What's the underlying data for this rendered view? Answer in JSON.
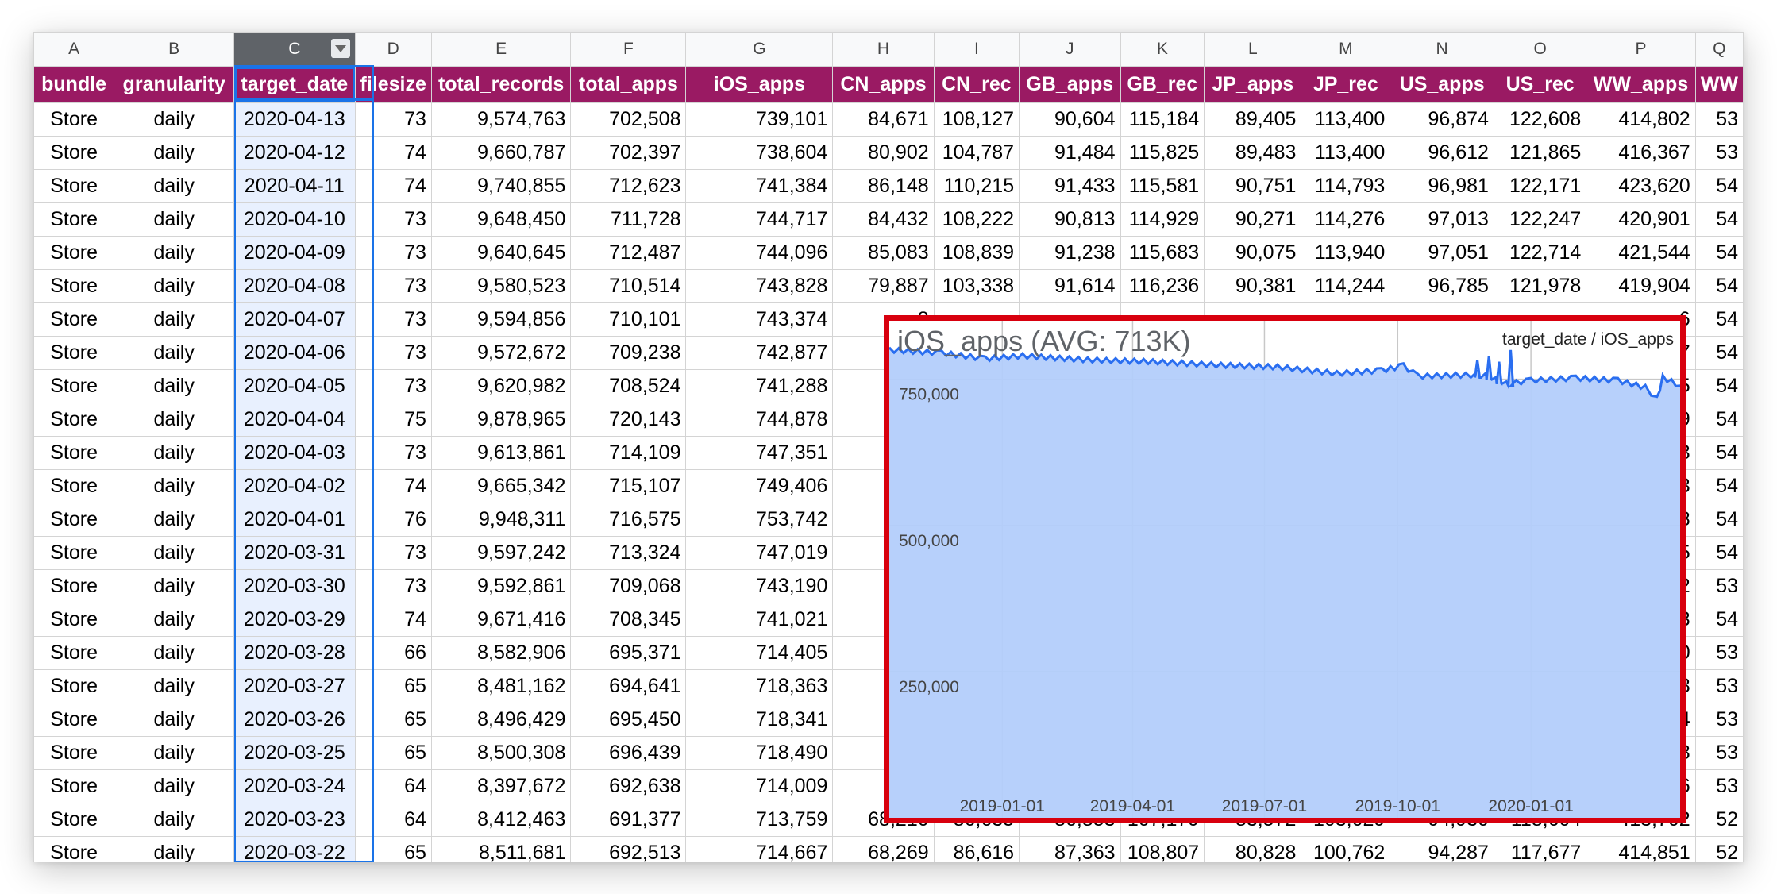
{
  "spreadsheet": {
    "column_letters": [
      "A",
      "B",
      "C",
      "D",
      "E",
      "F",
      "G",
      "H",
      "I",
      "J",
      "K",
      "L",
      "M",
      "N",
      "O",
      "P",
      "Q"
    ],
    "headers": [
      "bundle",
      "granularity",
      "target_date",
      "filesize",
      "total_records",
      "total_apps",
      "iOS_apps",
      "CN_apps",
      "CN_rec",
      "GB_apps",
      "GB_rec",
      "JP_apps",
      "JP_rec",
      "US_apps",
      "US_rec",
      "WW_apps",
      "WW"
    ],
    "rows": [
      [
        "Store",
        "daily",
        "2020-04-13",
        "73",
        "9,574,763",
        "702,508",
        "739,101",
        "84,671",
        "108,127",
        "90,604",
        "115,184",
        "89,405",
        "113,400",
        "96,874",
        "122,608",
        "414,802",
        "53"
      ],
      [
        "Store",
        "daily",
        "2020-04-12",
        "74",
        "9,660,787",
        "702,397",
        "738,604",
        "80,902",
        "104,787",
        "91,484",
        "115,825",
        "89,483",
        "113,400",
        "96,612",
        "121,865",
        "416,367",
        "53"
      ],
      [
        "Store",
        "daily",
        "2020-04-11",
        "74",
        "9,740,855",
        "712,623",
        "741,384",
        "86,148",
        "110,215",
        "91,433",
        "115,581",
        "90,751",
        "114,793",
        "96,981",
        "122,171",
        "423,620",
        "54"
      ],
      [
        "Store",
        "daily",
        "2020-04-10",
        "73",
        "9,648,450",
        "711,728",
        "744,717",
        "84,432",
        "108,222",
        "90,813",
        "114,929",
        "90,271",
        "114,276",
        "97,013",
        "122,247",
        "420,901",
        "54"
      ],
      [
        "Store",
        "daily",
        "2020-04-09",
        "73",
        "9,640,645",
        "712,487",
        "744,096",
        "85,083",
        "108,839",
        "91,238",
        "115,683",
        "90,075",
        "113,940",
        "97,051",
        "122,714",
        "421,544",
        "54"
      ],
      [
        "Store",
        "daily",
        "2020-04-08",
        "73",
        "9,580,523",
        "710,514",
        "743,828",
        "79,887",
        "103,338",
        "91,614",
        "116,236",
        "90,381",
        "114,244",
        "96,785",
        "121,978",
        "419,904",
        "54"
      ],
      [
        "Store",
        "daily",
        "2020-04-07",
        "73",
        "9,594,856",
        "710,101",
        "743,374",
        "8",
        "",
        "",
        "",
        "",
        "",
        "",
        "",
        "6",
        "54"
      ],
      [
        "Store",
        "daily",
        "2020-04-06",
        "73",
        "9,572,672",
        "709,238",
        "742,877",
        "8",
        "",
        "",
        "",
        "",
        "",
        "",
        "",
        "7",
        "54"
      ],
      [
        "Store",
        "daily",
        "2020-04-05",
        "73",
        "9,620,982",
        "708,524",
        "741,288",
        "7",
        "",
        "",
        "",
        "",
        "",
        "",
        "",
        "5",
        "54"
      ],
      [
        "Store",
        "daily",
        "2020-04-04",
        "75",
        "9,878,965",
        "720,143",
        "744,878",
        "8",
        "",
        "",
        "",
        "",
        "",
        "",
        "",
        "9",
        "54"
      ],
      [
        "Store",
        "daily",
        "2020-04-03",
        "73",
        "9,613,861",
        "714,109",
        "747,351",
        "8",
        "",
        "",
        "",
        "",
        "",
        "",
        "",
        "3",
        "54"
      ],
      [
        "Store",
        "daily",
        "2020-04-02",
        "74",
        "9,665,342",
        "715,107",
        "749,406",
        "8",
        "",
        "",
        "",
        "",
        "",
        "",
        "",
        "3",
        "54"
      ],
      [
        "Store",
        "daily",
        "2020-04-01",
        "76",
        "9,948,311",
        "716,575",
        "753,742",
        "8",
        "",
        "",
        "",
        "",
        "",
        "",
        "",
        "8",
        "54"
      ],
      [
        "Store",
        "daily",
        "2020-03-31",
        "73",
        "9,597,242",
        "713,324",
        "747,019",
        "8",
        "",
        "",
        "",
        "",
        "",
        "",
        "",
        "5",
        "54"
      ],
      [
        "Store",
        "daily",
        "2020-03-30",
        "73",
        "9,592,861",
        "709,068",
        "743,190",
        "8",
        "",
        "",
        "",
        "",
        "",
        "",
        "",
        "2",
        "53"
      ],
      [
        "Store",
        "daily",
        "2020-03-29",
        "74",
        "9,671,416",
        "708,345",
        "741,021",
        "8",
        "",
        "",
        "",
        "",
        "",
        "",
        "",
        "3",
        "54"
      ],
      [
        "Store",
        "daily",
        "2020-03-28",
        "66",
        "8,582,906",
        "695,371",
        "714,405",
        "7",
        "",
        "",
        "",
        "",
        "",
        "",
        "",
        "0",
        "53"
      ],
      [
        "Store",
        "daily",
        "2020-03-27",
        "65",
        "8,481,162",
        "694,641",
        "718,363",
        "7",
        "",
        "",
        "",
        "",
        "",
        "",
        "",
        "8",
        "53"
      ],
      [
        "Store",
        "daily",
        "2020-03-26",
        "65",
        "8,496,429",
        "695,450",
        "718,341",
        "7",
        "",
        "",
        "",
        "",
        "",
        "",
        "",
        "4",
        "53"
      ],
      [
        "Store",
        "daily",
        "2020-03-25",
        "65",
        "8,500,308",
        "696,439",
        "718,490",
        "6",
        "",
        "",
        "",
        "",
        "",
        "",
        "",
        "8",
        "53"
      ],
      [
        "Store",
        "daily",
        "2020-03-24",
        "64",
        "8,397,672",
        "692,638",
        "714,009",
        "6",
        "",
        "",
        "",
        "",
        "",
        "",
        "",
        "6",
        "53"
      ],
      [
        "Store",
        "daily",
        "2020-03-23",
        "64",
        "8,412,463",
        "691,377",
        "713,759",
        "68,210",
        "86,635",
        "86,853",
        "107,179",
        "83,572",
        "103,029",
        "94,930",
        "118,604",
        "413,702",
        "52"
      ],
      [
        "Store",
        "daily",
        "2020-03-22",
        "65",
        "8,511,681",
        "692,513",
        "714,667",
        "68,269",
        "86,616",
        "87,363",
        "108,807",
        "80,828",
        "100,762",
        "94,287",
        "117,677",
        "414,851",
        "52"
      ]
    ]
  },
  "chart": {
    "title": "iOS_apps (AVG: 713K)",
    "legend": "target_date / iOS_apps",
    "line_color": "#2a6ef0",
    "fill_color": "#b3cefb",
    "border_color": "#d8000e",
    "chart_data": {
      "type": "area",
      "series_column": "iOS_apps",
      "x_column": "target_date",
      "ylim": [
        0,
        850000
      ],
      "y_ticks": [
        250000,
        500000,
        750000
      ],
      "y_tick_labels": [
        "250,000",
        "500,000",
        "750,000"
      ],
      "x_ticks": [
        "2019-01-01",
        "2019-04-01",
        "2019-07-01",
        "2019-10-01",
        "2020-01-01"
      ],
      "x_range": [
        "2018-10-15",
        "2020-04-13"
      ],
      "trend_points": [
        {
          "x": "2018-10-15",
          "y": 800000
        },
        {
          "x": "2018-11-20",
          "y": 795000
        },
        {
          "x": "2018-12-20",
          "y": 785000
        },
        {
          "x": "2019-01-15",
          "y": 790000
        },
        {
          "x": "2019-03-01",
          "y": 783000
        },
        {
          "x": "2019-04-15",
          "y": 780000
        },
        {
          "x": "2019-06-01",
          "y": 774000
        },
        {
          "x": "2019-07-10",
          "y": 771000
        },
        {
          "x": "2019-08-20",
          "y": 760000
        },
        {
          "x": "2019-09-20",
          "y": 765000
        },
        {
          "x": "2019-10-05",
          "y": 773000
        },
        {
          "x": "2019-10-15",
          "y": 755000
        },
        {
          "x": "2019-11-10",
          "y": 757000
        },
        {
          "x": "2019-12-01",
          "y": 757000
        },
        {
          "x": "2019-12-15",
          "y": 742000
        },
        {
          "x": "2020-01-01",
          "y": 748000
        },
        {
          "x": "2020-02-01",
          "y": 752000
        },
        {
          "x": "2020-03-01",
          "y": 748000
        },
        {
          "x": "2020-03-20",
          "y": 736000
        },
        {
          "x": "2020-03-28",
          "y": 716000
        },
        {
          "x": "2020-04-01",
          "y": 753000
        },
        {
          "x": "2020-04-13",
          "y": 739000
        }
      ],
      "spikes": [
        {
          "x": "2019-11-25",
          "y": 783000
        },
        {
          "x": "2019-12-03",
          "y": 790000
        },
        {
          "x": "2019-12-10",
          "y": 780000
        },
        {
          "x": "2019-12-18",
          "y": 800000
        }
      ]
    }
  }
}
